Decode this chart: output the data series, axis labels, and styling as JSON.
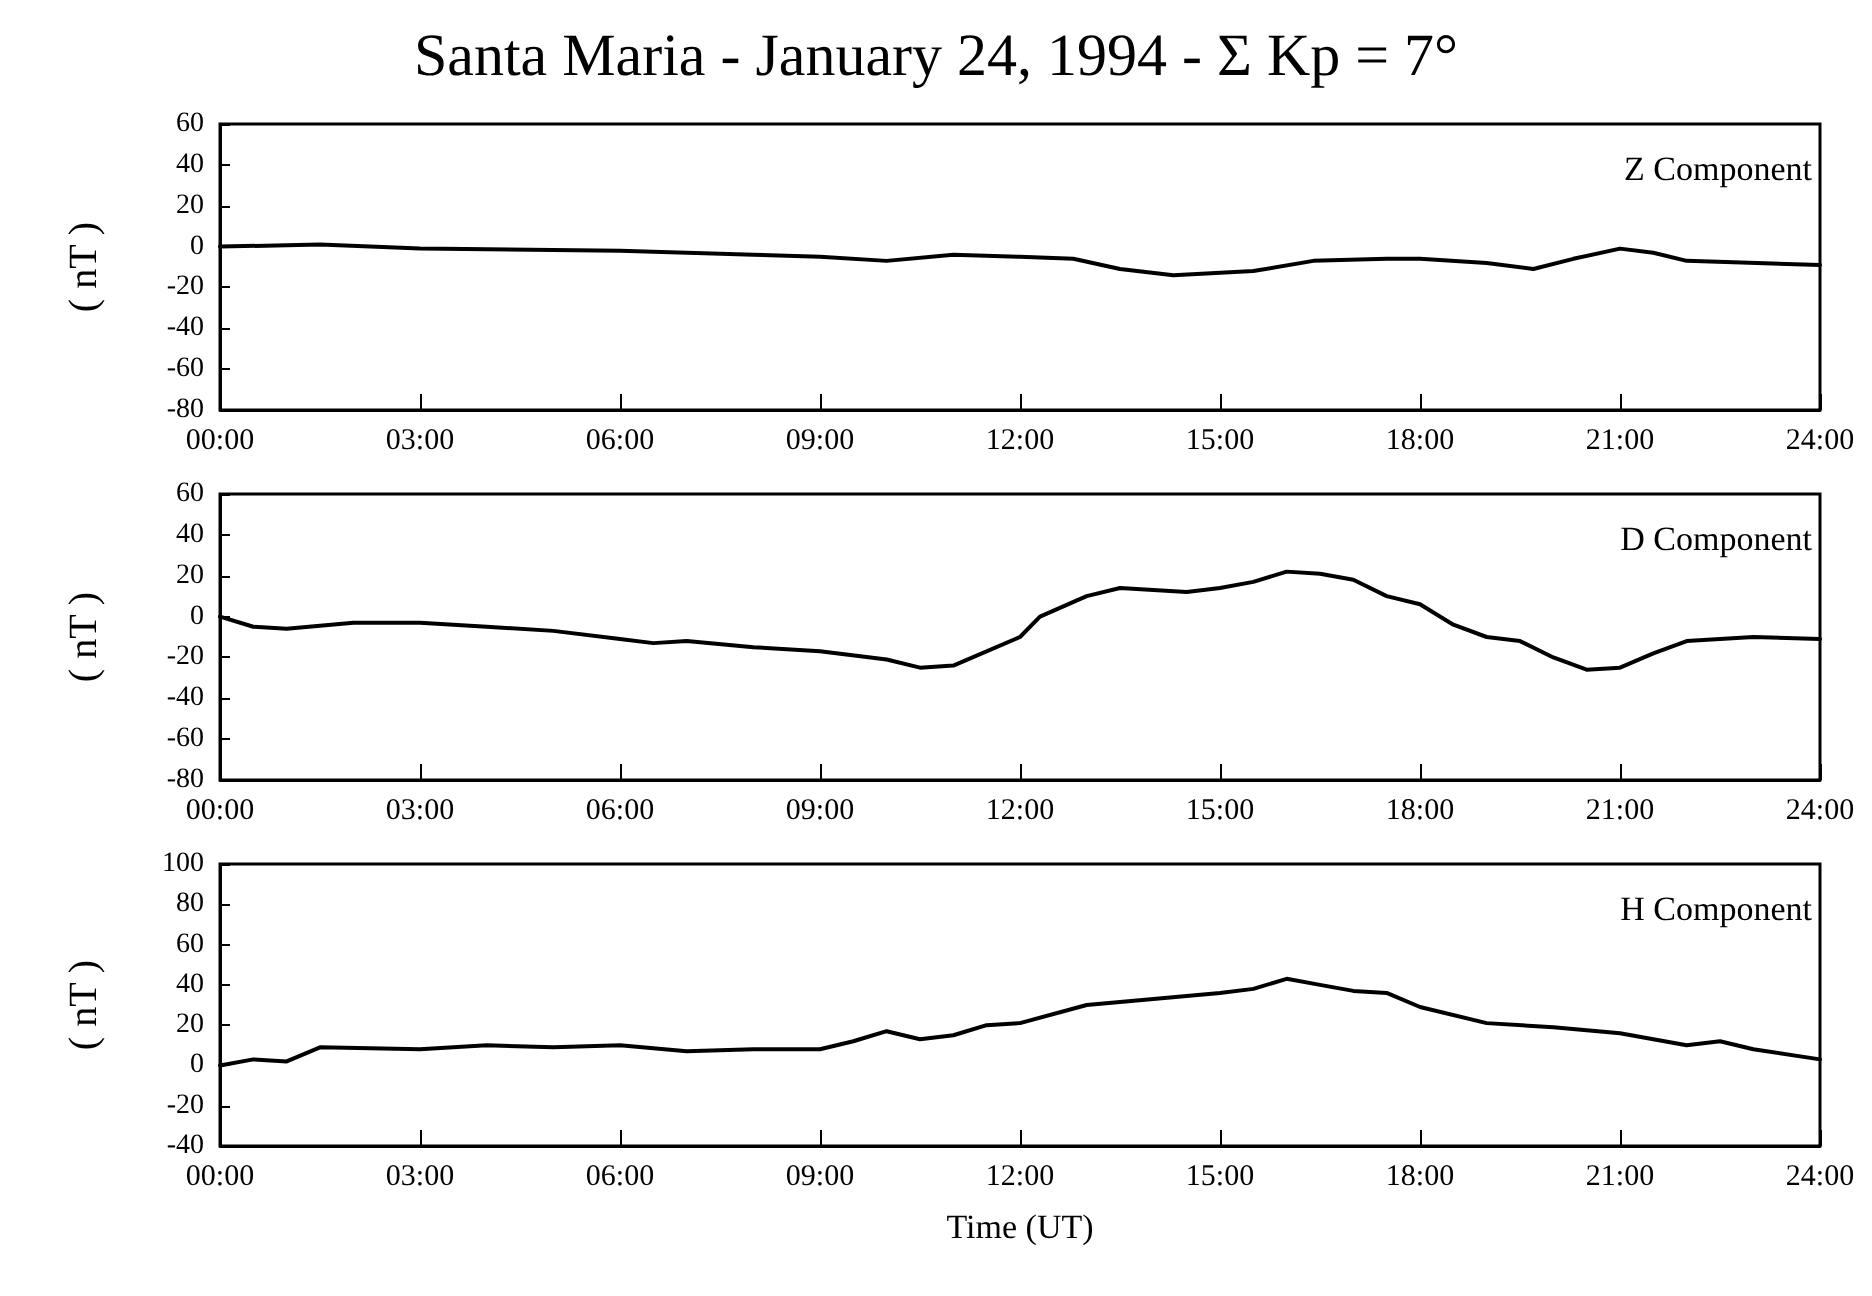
{
  "chart_data": [
    {
      "type": "line",
      "title": "Santa Maria - January 24, 1994 - Σ Kp = 7°",
      "ylabel": "( nT )",
      "annotations": [
        "Z Component"
      ],
      "grid": false,
      "x": [
        0,
        1.5,
        3,
        6,
        8,
        9,
        10,
        11,
        12,
        12.8,
        13.5,
        14.3,
        15.5,
        16.4,
        17.5,
        18,
        19,
        19.7,
        20.3,
        21,
        21.5,
        22,
        24
      ],
      "series": [
        {
          "color": "#000000",
          "values": [
            0,
            1,
            -1,
            -2,
            -4,
            -5,
            -7,
            -4,
            -5,
            -6,
            -11,
            -14,
            -12,
            -7,
            -6,
            -6,
            -8,
            -11,
            -6,
            -1,
            -3,
            -7,
            -9
          ]
        }
      ],
      "xlim": [
        0,
        24
      ],
      "xticks": [
        {
          "value": 0,
          "label": "00:00"
        },
        {
          "value": 3,
          "label": "03:00"
        },
        {
          "value": 6,
          "label": "06:00"
        },
        {
          "value": 9,
          "label": "09:00"
        },
        {
          "value": 12,
          "label": "12:00"
        },
        {
          "value": 15,
          "label": "15:00"
        },
        {
          "value": 18,
          "label": "18:00"
        },
        {
          "value": 21,
          "label": "21:00"
        },
        {
          "value": 24,
          "label": "24:00"
        }
      ],
      "ylim": [
        -80,
        60
      ],
      "yticks": [
        -80,
        -60,
        -40,
        -20,
        0,
        20,
        40,
        60
      ]
    },
    {
      "type": "line",
      "ylabel": "( nT )",
      "annotations": [
        "D Component"
      ],
      "grid": false,
      "x": [
        0,
        0.5,
        1,
        2,
        3,
        4,
        5,
        6,
        6.5,
        7,
        8,
        9,
        10,
        10.5,
        11,
        12,
        12.3,
        13,
        13.5,
        14,
        14.5,
        15,
        15.5,
        16,
        16.5,
        17,
        17.5,
        18,
        18.5,
        19,
        19.5,
        20,
        20.5,
        21,
        21.5,
        22,
        23,
        24
      ],
      "series": [
        {
          "color": "#000000",
          "values": [
            0,
            -5,
            -6,
            -3,
            -3,
            -5,
            -7,
            -11,
            -13,
            -12,
            -15,
            -17,
            -21,
            -25,
            -24,
            -10,
            0,
            10,
            14,
            13,
            12,
            14,
            17,
            22,
            21,
            18,
            10,
            6,
            -4,
            -10,
            -12,
            -20,
            -26,
            -25,
            -18,
            -12,
            -10,
            -11
          ]
        }
      ],
      "xlim": [
        0,
        24
      ],
      "xticks": [
        {
          "value": 0,
          "label": "00:00"
        },
        {
          "value": 3,
          "label": "03:00"
        },
        {
          "value": 6,
          "label": "06:00"
        },
        {
          "value": 9,
          "label": "09:00"
        },
        {
          "value": 12,
          "label": "12:00"
        },
        {
          "value": 15,
          "label": "15:00"
        },
        {
          "value": 18,
          "label": "18:00"
        },
        {
          "value": 21,
          "label": "21:00"
        },
        {
          "value": 24,
          "label": "24:00"
        }
      ],
      "ylim": [
        -80,
        60
      ],
      "yticks": [
        -80,
        -60,
        -40,
        -20,
        0,
        20,
        40,
        60
      ]
    },
    {
      "type": "line",
      "xlabel": "Time (UT)",
      "ylabel": "( nT )",
      "annotations": [
        "H Component"
      ],
      "grid": false,
      "x": [
        0,
        0.5,
        1,
        1.5,
        3,
        4,
        5,
        6,
        7,
        8,
        9,
        9.5,
        10,
        10.5,
        11,
        11.5,
        12,
        13,
        14,
        15,
        15.5,
        16,
        16.5,
        17,
        17.5,
        18,
        19,
        20,
        21,
        22,
        22.5,
        23,
        24
      ],
      "series": [
        {
          "color": "#000000",
          "values": [
            0,
            3,
            2,
            9,
            8,
            10,
            9,
            10,
            7,
            8,
            8,
            12,
            17,
            13,
            15,
            20,
            21,
            30,
            33,
            36,
            38,
            43,
            40,
            37,
            36,
            29,
            21,
            19,
            16,
            10,
            12,
            8,
            3
          ]
        }
      ],
      "xlim": [
        0,
        24
      ],
      "xticks": [
        {
          "value": 0,
          "label": "00:00"
        },
        {
          "value": 3,
          "label": "03:00"
        },
        {
          "value": 6,
          "label": "06:00"
        },
        {
          "value": 9,
          "label": "09:00"
        },
        {
          "value": 12,
          "label": "12:00"
        },
        {
          "value": 15,
          "label": "15:00"
        },
        {
          "value": 18,
          "label": "18:00"
        },
        {
          "value": 21,
          "label": "21:00"
        },
        {
          "value": 24,
          "label": "24:00"
        }
      ],
      "ylim": [
        -40,
        100
      ],
      "yticks": [
        -40,
        -20,
        0,
        20,
        40,
        60,
        80,
        100
      ]
    }
  ]
}
